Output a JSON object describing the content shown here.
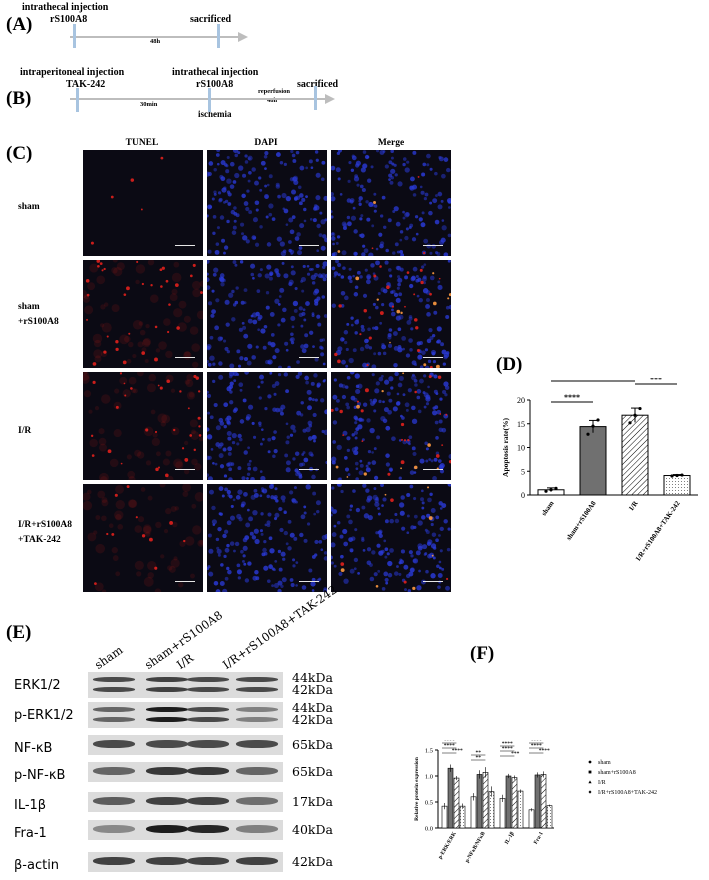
{
  "panels": {
    "A": "(A)",
    "B": "(B)",
    "C": "(C)",
    "D": "(D)",
    "E": "(E)",
    "F": "(F)"
  },
  "timeline_a": {
    "injection": "intrathecal injection",
    "drug": "rS100A8",
    "duration": "48h",
    "end": "sacrificed"
  },
  "timeline_b": {
    "ip_injection": "intraperitoneal injection",
    "ip_drug": "TAK-242",
    "duration1": "30min",
    "it_injection": "intrathecal injection",
    "it_drug": "rS100A8",
    "ischemia": "ischemia",
    "reperfusion": "reperfusion",
    "duration2": "48h",
    "end": "sacrificed"
  },
  "staining": {
    "columns": [
      "TUNEL",
      "DAPI",
      "Merge"
    ],
    "rows": [
      {
        "line1": "sham",
        "line2": ""
      },
      {
        "line1": "sham",
        "line2": "+rS100A8"
      },
      {
        "line1": "I/R",
        "line2": ""
      },
      {
        "line1": "I/R+rS100A8",
        "line2": "+TAK-242"
      }
    ],
    "colors": {
      "tunel": "#e0201c",
      "dapi": "#2a3ad8",
      "background": "#0b0a14"
    }
  },
  "western": {
    "lanes": [
      "sham",
      "sham+rS100A8",
      "I/R",
      "I/R+rS100A8+TAK-242"
    ],
    "rows": [
      {
        "label": "ERK1/2",
        "kda": [
          "44kDa",
          "42kDa"
        ],
        "intensity": [
          0.7,
          0.75,
          0.7,
          0.7
        ]
      },
      {
        "label": "p-ERK1/2",
        "kda": [
          "44kDa",
          "42kDa"
        ],
        "intensity": [
          0.55,
          0.95,
          0.7,
          0.4
        ]
      },
      {
        "label": "NF-κB",
        "kda": [
          "65kDa"
        ],
        "intensity": [
          0.7,
          0.7,
          0.7,
          0.7
        ]
      },
      {
        "label": "p-NF-κB",
        "kda": [
          "65kDa"
        ],
        "intensity": [
          0.55,
          0.8,
          0.8,
          0.55
        ]
      },
      {
        "label": "IL-1β",
        "kda": [
          "17kDa"
        ],
        "intensity": [
          0.6,
          0.75,
          0.75,
          0.5
        ]
      },
      {
        "label": "Fra-1",
        "kda": [
          "40kDa"
        ],
        "intensity": [
          0.35,
          0.95,
          0.9,
          0.4
        ]
      },
      {
        "label": "β-actin",
        "kda": [
          "42kDa"
        ],
        "intensity": [
          0.75,
          0.75,
          0.75,
          0.75
        ]
      }
    ]
  },
  "chart_data": [
    {
      "type": "bar",
      "ylabel": "Apoptosis rate(%)",
      "categories": [
        "sham",
        "sham+rS100A8",
        "I/R",
        "I/R+rS100A8+TAK-242"
      ],
      "values": [
        1.1,
        14.4,
        16.8,
        4.1
      ],
      "errors": [
        0.4,
        1.3,
        1.5,
        0.2
      ],
      "points": [
        [
          0.8,
          1.1,
          1.4
        ],
        [
          12.8,
          14.5,
          15.8
        ],
        [
          15.2,
          16.8,
          18.2
        ],
        [
          4.0,
          4.1,
          4.2
        ]
      ],
      "ylim": [
        0,
        20
      ],
      "yticks": [
        0,
        5,
        10,
        15,
        20
      ],
      "significance": [
        {
          "from": 0,
          "to": 1,
          "label": "****"
        },
        {
          "from": 0,
          "to": 2,
          "label": "****"
        },
        {
          "from": 2,
          "to": 3,
          "label": "***"
        }
      ],
      "fills": [
        "white",
        "#707070",
        "hatch",
        "dots"
      ]
    },
    {
      "type": "bar",
      "ylabel": "Relative protein expression",
      "categories": [
        "p-ERK/ERK",
        "p-NFκB/NFκB",
        "IL-1β",
        "Fra-1"
      ],
      "series": [
        {
          "name": "sham",
          "values": [
            0.42,
            0.6,
            0.57,
            0.35
          ],
          "errors": [
            0.06,
            0.07,
            0.07,
            0.03
          ]
        },
        {
          "name": "sham+rS100A8",
          "values": [
            1.15,
            1.03,
            1.0,
            1.02
          ],
          "errors": [
            0.07,
            0.08,
            0.04,
            0.05
          ]
        },
        {
          "name": "I/R",
          "values": [
            0.96,
            1.07,
            0.97,
            1.03
          ],
          "errors": [
            0.04,
            0.1,
            0.04,
            0.06
          ]
        },
        {
          "name": "I/R+rS100A8+TAK-242",
          "values": [
            0.42,
            0.7,
            0.71,
            0.43
          ],
          "errors": [
            0.05,
            0.1,
            0.03,
            0.02
          ]
        }
      ],
      "ylim": [
        0,
        1.5
      ],
      "yticks": [
        "0.0",
        "0.5",
        "1.0",
        "1.5"
      ],
      "significance": [
        [
          "****",
          "****",
          "****"
        ],
        [
          "**",
          "**"
        ],
        [
          "****",
          "****",
          "***"
        ],
        [
          "****",
          "****",
          "****"
        ]
      ],
      "fills": [
        "white",
        "#707070",
        "hatch",
        "dots"
      ]
    }
  ]
}
